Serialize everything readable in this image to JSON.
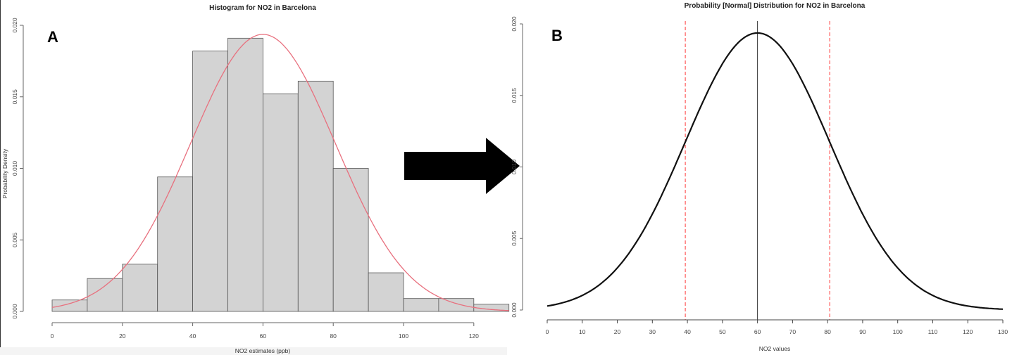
{
  "panel_labels": {
    "a": "A",
    "b": "B"
  },
  "chart_data": [
    {
      "type": "bar",
      "title": "Histogram for NO2 in Barcelona",
      "xlabel": "NO2 estimates (ppb)",
      "ylabel": "Probability Density",
      "bin_edges": [
        0,
        10,
        20,
        30,
        40,
        50,
        60,
        70,
        80,
        90,
        100,
        110,
        120,
        130
      ],
      "values": [
        0.0008,
        0.0023,
        0.0033,
        0.0094,
        0.0182,
        0.0191,
        0.0152,
        0.0161,
        0.01,
        0.0027,
        0.0009,
        0.0009,
        0.0005
      ],
      "xlim": [
        0,
        130
      ],
      "ylim": [
        0,
        0.02
      ],
      "xticks": [
        "0",
        "20",
        "40",
        "60",
        "80",
        "100",
        "120"
      ],
      "yticks": [
        "0.000",
        "0.005",
        "0.010",
        "0.015",
        "0.020"
      ],
      "overlay": {
        "type": "normal-density",
        "mean": 60,
        "sd": 20.6,
        "color": "#e8707e"
      },
      "bar_color": "#d3d3d3"
    },
    {
      "type": "line",
      "title": "Probability [Normal] Distribution for NO2 in Barcelona",
      "xlabel": "NO2 values",
      "ylabel": "",
      "curve": {
        "type": "normal-density",
        "mean": 60,
        "sd": 20.6,
        "color": "#111111"
      },
      "xlim": [
        0,
        130
      ],
      "ylim": [
        0,
        0.02
      ],
      "xticks": [
        "0",
        "10",
        "20",
        "30",
        "40",
        "50",
        "60",
        "70",
        "80",
        "90",
        "100",
        "110",
        "120",
        "130"
      ],
      "yticks": [
        "0.000",
        "0.005",
        "0.010",
        "0.015",
        "0.020"
      ],
      "vlines": [
        {
          "x": 39.4,
          "style": "dashed",
          "color": "#ff3b3b"
        },
        {
          "x": 60,
          "style": "solid",
          "color": "#333333"
        },
        {
          "x": 80.6,
          "style": "dashed",
          "color": "#ff3b3b"
        }
      ]
    }
  ]
}
